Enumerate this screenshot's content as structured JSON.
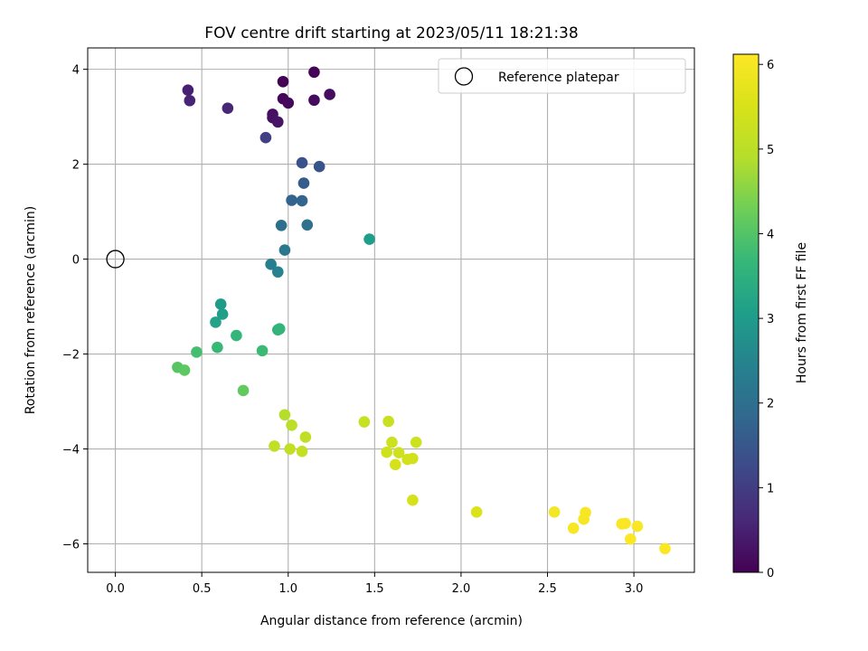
{
  "chart_data": {
    "type": "scatter",
    "title": "FOV centre drift starting at 2023/05/11 18:21:38",
    "xlabel": "Angular distance from reference (arcmin)",
    "ylabel": "Rotation from reference (arcmin)",
    "xlim": [
      -0.16,
      3.35
    ],
    "ylim": [
      -6.6,
      4.45
    ],
    "xticks": [
      0.0,
      0.5,
      1.0,
      1.5,
      2.0,
      2.5,
      3.0
    ],
    "xtick_labels": [
      "0.0",
      "0.5",
      "1.0",
      "1.5",
      "2.0",
      "2.5",
      "3.0"
    ],
    "yticks": [
      -6,
      -4,
      -2,
      0,
      2,
      4
    ],
    "ytick_labels": [
      "−6",
      "−4",
      "−2",
      "0",
      "2",
      "4"
    ],
    "grid": true,
    "legend": {
      "location": "upper right",
      "entries": [
        "Reference platepar"
      ]
    },
    "reference_point": {
      "x": 0.0,
      "y": 0.0,
      "label": "Reference platepar"
    },
    "colorbar": {
      "label": "Hours from first FF file",
      "colormap": "viridis",
      "range": [
        0,
        6.12
      ],
      "ticks": [
        0,
        1,
        2,
        3,
        4,
        5,
        6
      ],
      "tick_labels": [
        "0",
        "1",
        "2",
        "3",
        "4",
        "5",
        "6"
      ]
    },
    "points": [
      {
        "x": 0.97,
        "y": 3.74,
        "c": 0.02
      },
      {
        "x": 1.15,
        "y": 3.94,
        "c": 0.05
      },
      {
        "x": 0.97,
        "y": 3.38,
        "c": 0.1
      },
      {
        "x": 1.0,
        "y": 3.29,
        "c": 0.12
      },
      {
        "x": 1.15,
        "y": 3.35,
        "c": 0.15
      },
      {
        "x": 1.24,
        "y": 3.47,
        "c": 0.18
      },
      {
        "x": 0.91,
        "y": 3.05,
        "c": 0.2
      },
      {
        "x": 0.91,
        "y": 2.98,
        "c": 0.25
      },
      {
        "x": 0.94,
        "y": 2.89,
        "c": 0.3
      },
      {
        "x": 0.42,
        "y": 3.56,
        "c": 0.5
      },
      {
        "x": 0.43,
        "y": 3.34,
        "c": 0.55
      },
      {
        "x": 0.65,
        "y": 3.18,
        "c": 0.6
      },
      {
        "x": 0.87,
        "y": 2.56,
        "c": 1.05
      },
      {
        "x": 1.08,
        "y": 2.03,
        "c": 1.4
      },
      {
        "x": 1.18,
        "y": 1.95,
        "c": 1.45
      },
      {
        "x": 1.09,
        "y": 1.6,
        "c": 1.6
      },
      {
        "x": 1.02,
        "y": 1.24,
        "c": 1.75
      },
      {
        "x": 1.08,
        "y": 1.23,
        "c": 1.8
      },
      {
        "x": 0.96,
        "y": 0.71,
        "c": 2.0
      },
      {
        "x": 1.11,
        "y": 0.72,
        "c": 2.05
      },
      {
        "x": 0.98,
        "y": 0.19,
        "c": 2.2
      },
      {
        "x": 1.47,
        "y": 0.42,
        "c": 3.05
      },
      {
        "x": 0.9,
        "y": -0.11,
        "c": 2.35
      },
      {
        "x": 0.94,
        "y": -0.27,
        "c": 2.45
      },
      {
        "x": 0.61,
        "y": -0.95,
        "c": 3.0
      },
      {
        "x": 0.62,
        "y": -1.16,
        "c": 3.05
      },
      {
        "x": 0.58,
        "y": -1.33,
        "c": 3.15
      },
      {
        "x": 0.94,
        "y": -1.49,
        "c": 3.55
      },
      {
        "x": 0.95,
        "y": -1.47,
        "c": 3.6
      },
      {
        "x": 0.7,
        "y": -1.61,
        "c": 3.65
      },
      {
        "x": 0.59,
        "y": -1.86,
        "c": 3.7
      },
      {
        "x": 0.85,
        "y": -1.93,
        "c": 3.75
      },
      {
        "x": 0.47,
        "y": -1.96,
        "c": 3.85
      },
      {
        "x": 0.36,
        "y": -2.28,
        "c": 4.05
      },
      {
        "x": 0.4,
        "y": -2.34,
        "c": 4.1
      },
      {
        "x": 0.74,
        "y": -2.77,
        "c": 4.15
      },
      {
        "x": 0.98,
        "y": -3.28,
        "c": 4.9
      },
      {
        "x": 1.02,
        "y": -3.5,
        "c": 5.0
      },
      {
        "x": 1.1,
        "y": -3.75,
        "c": 5.05
      },
      {
        "x": 0.92,
        "y": -3.94,
        "c": 5.1
      },
      {
        "x": 1.01,
        "y": -4.0,
        "c": 5.12
      },
      {
        "x": 1.08,
        "y": -4.05,
        "c": 5.15
      },
      {
        "x": 1.44,
        "y": -3.43,
        "c": 5.2
      },
      {
        "x": 1.58,
        "y": -3.42,
        "c": 5.25
      },
      {
        "x": 1.6,
        "y": -3.86,
        "c": 5.3
      },
      {
        "x": 1.74,
        "y": -3.86,
        "c": 5.3
      },
      {
        "x": 1.57,
        "y": -4.07,
        "c": 5.35
      },
      {
        "x": 1.64,
        "y": -4.08,
        "c": 5.35
      },
      {
        "x": 1.69,
        "y": -4.22,
        "c": 5.4
      },
      {
        "x": 1.72,
        "y": -4.2,
        "c": 5.4
      },
      {
        "x": 1.62,
        "y": -4.33,
        "c": 5.45
      },
      {
        "x": 1.72,
        "y": -5.08,
        "c": 5.45
      },
      {
        "x": 2.09,
        "y": -5.33,
        "c": 5.55
      },
      {
        "x": 2.54,
        "y": -5.33,
        "c": 5.95
      },
      {
        "x": 2.65,
        "y": -5.67,
        "c": 6.0
      },
      {
        "x": 2.71,
        "y": -5.48,
        "c": 6.0
      },
      {
        "x": 2.72,
        "y": -5.34,
        "c": 6.0
      },
      {
        "x": 2.93,
        "y": -5.58,
        "c": 6.05
      },
      {
        "x": 2.95,
        "y": -5.57,
        "c": 6.05
      },
      {
        "x": 3.02,
        "y": -5.63,
        "c": 6.05
      },
      {
        "x": 2.98,
        "y": -5.9,
        "c": 6.08
      },
      {
        "x": 3.18,
        "y": -6.1,
        "c": 6.1
      }
    ]
  }
}
